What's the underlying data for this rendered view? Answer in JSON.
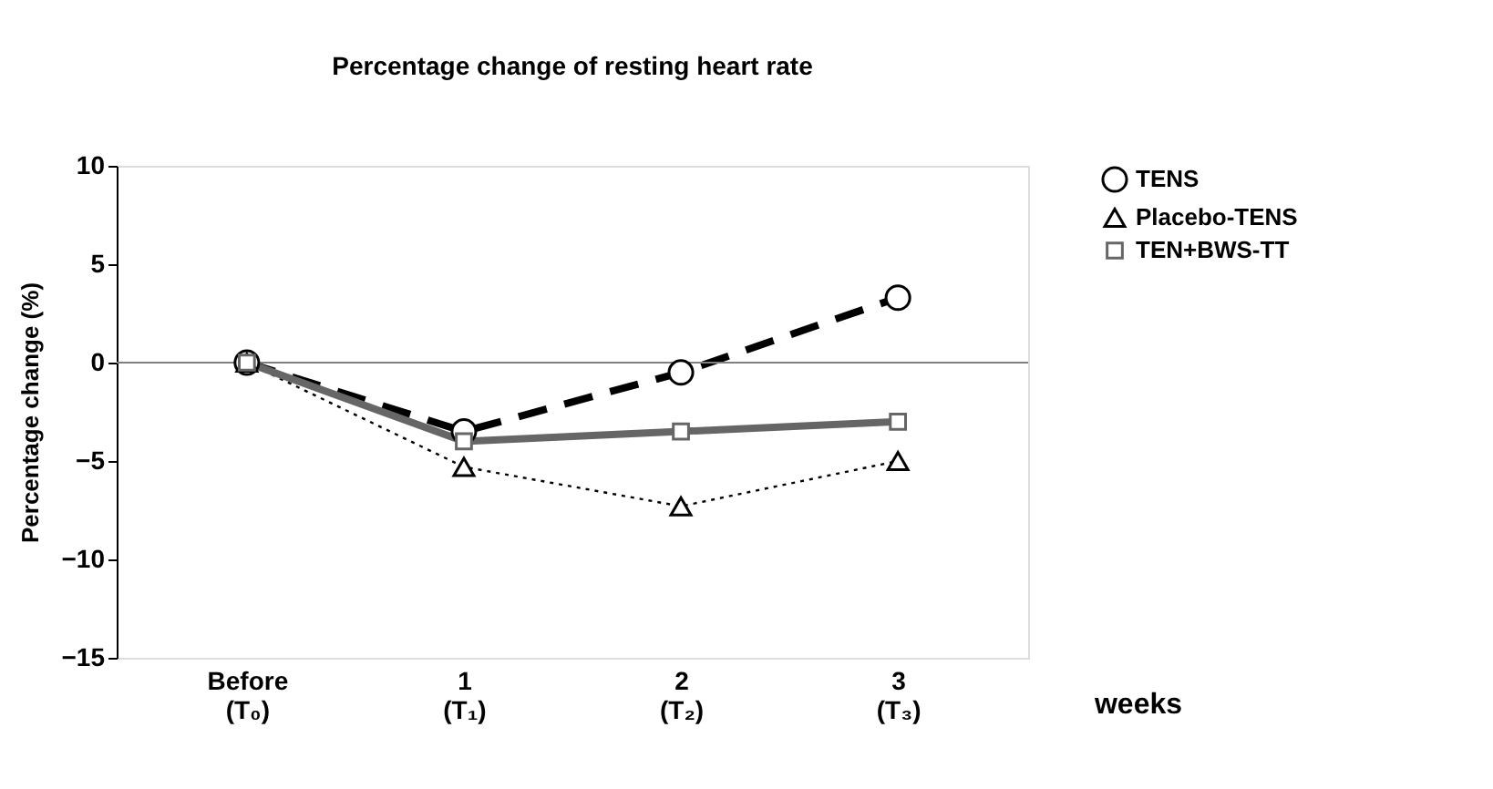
{
  "chart_data": {
    "type": "line",
    "title": "Percentage change of resting heart rate",
    "categories": [
      "Before\n(T₀)",
      "1\n(T₁)",
      "2\n(T₂)",
      "3\n(T₃)"
    ],
    "xlabel": "weeks",
    "ylabel": "Percentage change (%)",
    "ylim": [
      -15,
      10
    ],
    "yticks": [
      -15,
      -10,
      -5,
      0,
      5,
      10
    ],
    "grid": false,
    "legend": "right",
    "ref_lines": [
      {
        "axis": "y",
        "value": 0,
        "color": "#808080"
      }
    ],
    "series": [
      {
        "name": "TENS",
        "color": "#000000",
        "marker": "circle",
        "line_style": "dashed",
        "values": [
          0,
          -3.5,
          -0.5,
          3.3
        ]
      },
      {
        "name": "Placebo-TENS",
        "color": "#000000",
        "marker": "triangle",
        "line_style": "dotted",
        "values": [
          0,
          -5.3,
          -7.3,
          -5.0
        ]
      },
      {
        "name": "TEN+BWS-TT",
        "color": "#666666",
        "marker": "square",
        "line_style": "solid",
        "values": [
          0,
          -4.0,
          -3.5,
          -3.0
        ]
      }
    ]
  }
}
